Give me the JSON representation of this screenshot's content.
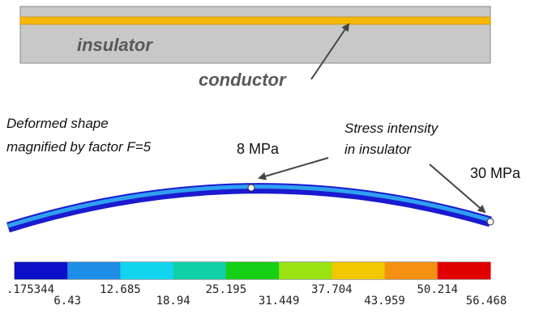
{
  "diagram": {
    "labels": {
      "insulator": "insulator",
      "conductor": "conductor"
    },
    "caption": [
      "Deformed shape",
      "magnified by factor F=5"
    ],
    "callouts": {
      "middle": "8 MPa",
      "stress": [
        "Stress intensity",
        "in insulator"
      ],
      "end": "30 MPa"
    },
    "legend": {
      "ticks": [
        ".175344",
        "6.43",
        "12.685",
        "18.94",
        "25.195",
        "31.449",
        "37.704",
        "43.959",
        "50.214",
        "56.468"
      ]
    }
  }
}
